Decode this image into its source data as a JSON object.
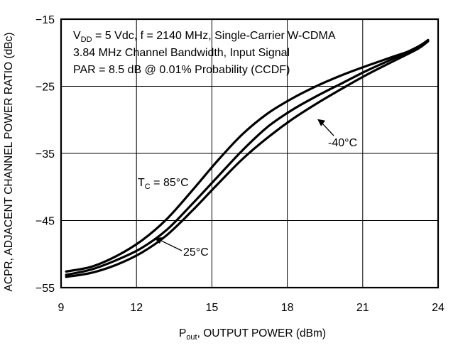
{
  "chart_data": {
    "type": "line",
    "xlabel": {
      "main": "P",
      "sub": "out",
      "rest": ", OUTPUT POWER (dBm)"
    },
    "ylabel": "ACPR, ADJACENT CHANNEL POWER RATIO (dBc)",
    "xlim": [
      9,
      24
    ],
    "ylim": [
      -55,
      -15
    ],
    "xticks": [
      9,
      12,
      15,
      18,
      21,
      24
    ],
    "yticks": [
      -15,
      -25,
      -35,
      -45,
      -55
    ],
    "grid": true,
    "conditions": {
      "line1": {
        "prefix": "V",
        "sub": "DD",
        "rest": " = 5 Vdc, f = 2140 MHz, Single-Carrier W-CDMA"
      },
      "line2": "3.84 MHz Channel Bandwidth, Input Signal",
      "line3": "PAR = 8.5 dB @ 0.01% Probability (CCDF)"
    },
    "annotations": {
      "t85": {
        "prefix": "T",
        "sub": "C",
        "rest": " = 85°C"
      },
      "t25": "25°C",
      "tm40": "-40°C"
    },
    "series": [
      {
        "name": "85°C",
        "x": [
          9.2,
          10.2,
          11.2,
          12.2,
          13.2,
          14.2,
          15.2,
          16.2,
          17.2,
          18.2,
          19.2,
          20.2,
          21.2,
          22.2,
          23.2,
          23.6
        ],
        "y": [
          -52.6,
          -51.9,
          -50.3,
          -48.0,
          -44.8,
          -40.6,
          -36.2,
          -32.2,
          -29.1,
          -26.8,
          -24.9,
          -23.3,
          -21.9,
          -20.6,
          -19.3,
          -18.2
        ]
      },
      {
        "name": "25°C",
        "x": [
          9.2,
          10.2,
          11.2,
          12.2,
          13.2,
          14.2,
          15.2,
          16.2,
          17.2,
          18.2,
          19.2,
          20.2,
          21.2,
          22.2,
          23.2,
          23.6
        ],
        "y": [
          -53.1,
          -52.3,
          -50.9,
          -49.1,
          -46.4,
          -42.6,
          -38.6,
          -34.6,
          -31.1,
          -28.5,
          -26.4,
          -24.5,
          -22.6,
          -20.9,
          -19.1,
          -18.1
        ]
      },
      {
        "name": "-40°C",
        "x": [
          9.2,
          10.2,
          11.2,
          12.2,
          13.2,
          14.2,
          15.2,
          16.2,
          17.2,
          18.2,
          19.2,
          20.2,
          21.2,
          22.2,
          23.2,
          23.6
        ],
        "y": [
          -53.4,
          -52.8,
          -51.6,
          -49.8,
          -47.2,
          -43.6,
          -39.7,
          -35.9,
          -32.7,
          -29.9,
          -27.5,
          -25.3,
          -23.2,
          -21.3,
          -19.4,
          -18.3
        ]
      }
    ]
  }
}
